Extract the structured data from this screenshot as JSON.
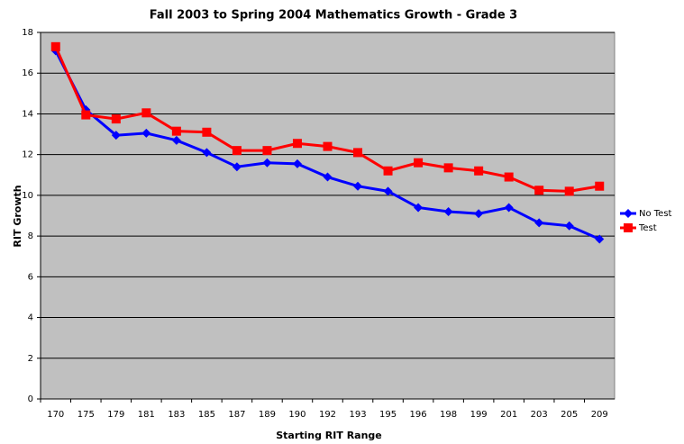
{
  "chart_data": {
    "type": "line",
    "title": "Fall 2003 to Spring 2004 Mathematics Growth - Grade 3",
    "x_label": "Starting RIT Range",
    "y_label": "RIT Growth",
    "categories": [
      "170",
      "175",
      "179",
      "181",
      "183",
      "185",
      "187",
      "189",
      "190",
      "192",
      "193",
      "195",
      "196",
      "198",
      "199",
      "201",
      "203",
      "205",
      "209"
    ],
    "series": [
      {
        "name": "No Test",
        "color": "#0000ff",
        "marker": "diamond",
        "values": [
          17.1,
          14.2,
          12.95,
          13.05,
          12.7,
          12.1,
          11.4,
          11.6,
          11.55,
          10.9,
          10.45,
          10.2,
          9.4,
          9.2,
          9.1,
          9.4,
          8.65,
          8.5,
          7.85
        ]
      },
      {
        "name": "Test",
        "color": "#ff0000",
        "marker": "square",
        "values": [
          17.3,
          13.95,
          13.75,
          14.05,
          13.15,
          13.1,
          12.2,
          12.2,
          12.55,
          12.4,
          12.1,
          11.2,
          11.6,
          11.35,
          11.2,
          10.9,
          10.25,
          10.2,
          10.45
        ]
      }
    ],
    "ylim": [
      0,
      18
    ],
    "yticks": [
      0,
      2,
      4,
      6,
      8,
      10,
      12,
      14,
      16,
      18
    ],
    "grid": true,
    "legend": "right"
  }
}
